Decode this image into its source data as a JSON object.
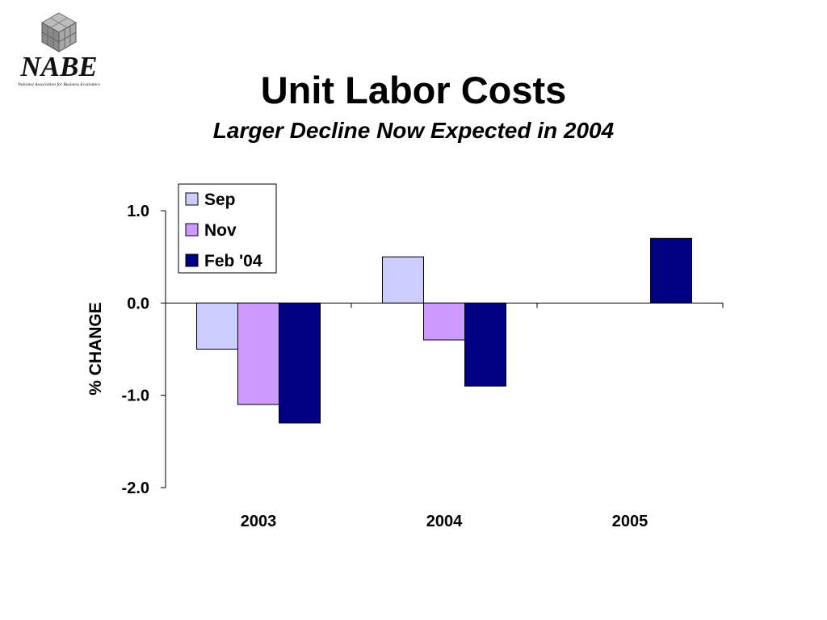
{
  "header": {
    "logo_text": "NABE",
    "logo_subtext": "National Association for Business Economics",
    "title": "Unit Labor Costs",
    "subtitle": "Larger Decline Now Expected in 2004"
  },
  "chart_data": {
    "type": "bar",
    "title": "Unit Labor Costs",
    "subtitle": "Larger Decline Now Expected in 2004",
    "xlabel": "",
    "ylabel": "% CHANGE",
    "categories": [
      "2003",
      "2004",
      "2005"
    ],
    "ylim": [
      -2.0,
      1.0
    ],
    "yticks": [
      1.0,
      0.0,
      -1.0,
      -2.0
    ],
    "ytick_labels": [
      "1.0",
      "0.0",
      "-1.0",
      "-2.0"
    ],
    "grid": false,
    "legend_position": "top-left",
    "series": [
      {
        "name": "Sep",
        "color": "#ccccff",
        "values": [
          -0.5,
          0.5,
          null
        ]
      },
      {
        "name": "Nov",
        "color": "#cc99ff",
        "values": [
          -1.1,
          -0.4,
          null
        ]
      },
      {
        "name": "Feb '04",
        "color": "#000080",
        "values": [
          -1.3,
          -0.9,
          0.7
        ]
      }
    ]
  }
}
